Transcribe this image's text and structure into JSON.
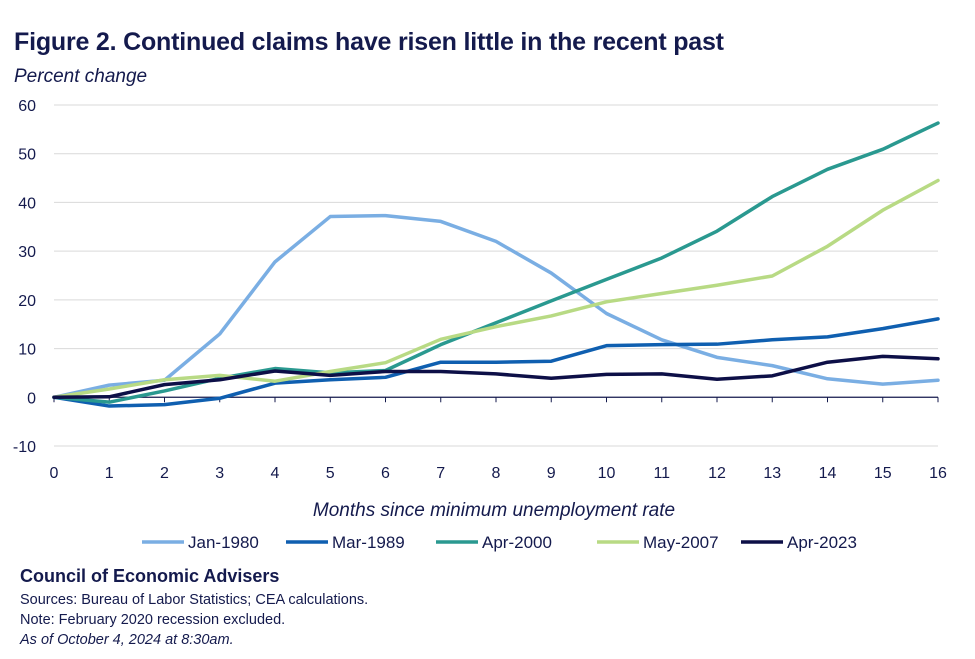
{
  "chart_data": {
    "type": "line",
    "title": "Figure 2. Continued claims have risen little in the recent past",
    "ylabel": "Percent change",
    "xlabel": "Months since minimum unemployment rate",
    "xlim": [
      0,
      16
    ],
    "ylim": [
      -10,
      60
    ],
    "yticks": [
      -10,
      0,
      10,
      20,
      30,
      40,
      50,
      60
    ],
    "xticks": [
      0,
      1,
      2,
      3,
      4,
      5,
      6,
      7,
      8,
      9,
      10,
      11,
      12,
      13,
      14,
      15,
      16
    ],
    "grid": true,
    "legend_position": "bottom",
    "x": [
      0,
      1,
      2,
      3,
      4,
      5,
      6,
      7,
      8,
      9,
      10,
      11,
      12,
      13,
      14,
      15,
      16
    ],
    "series": [
      {
        "name": "Jan-1980",
        "color": "#7aaee3",
        "values": [
          0,
          2.5,
          3.5,
          13,
          27.8,
          37.1,
          37.3,
          36.1,
          32,
          25.5,
          17.2,
          11.8,
          8.2,
          6.5,
          3.8,
          2.7,
          3.5
        ]
      },
      {
        "name": "Mar-1989",
        "color": "#0f5fb0",
        "values": [
          0,
          -1.8,
          -1.5,
          -0.2,
          2.9,
          3.6,
          4.1,
          7.2,
          7.2,
          7.4,
          10.6,
          10.8,
          10.9,
          11.8,
          12.4,
          14.1,
          16.1
        ]
      },
      {
        "name": "Apr-2000",
        "color": "#2a9990",
        "values": [
          0,
          -1,
          1.3,
          3.9,
          5.9,
          5,
          5.5,
          10.8,
          15.3,
          19.8,
          24.2,
          28.6,
          34.1,
          41.2,
          46.8,
          50.9,
          56.3
        ]
      },
      {
        "name": "May-2007",
        "color": "#b8da84",
        "values": [
          0,
          1.7,
          3.6,
          4.5,
          3.3,
          5.3,
          7.1,
          11.9,
          14.5,
          16.7,
          19.6,
          21.3,
          23,
          24.9,
          31,
          38.4,
          44.5
        ]
      },
      {
        "name": "Apr-2023",
        "color": "#0d0f47",
        "values": [
          0,
          0.1,
          2.6,
          3.6,
          5.4,
          4.5,
          5.3,
          5.3,
          4.8,
          3.9,
          4.7,
          4.8,
          3.7,
          4.4,
          7.2,
          8.4,
          7.9
        ]
      }
    ]
  },
  "footer": {
    "org": "Council of Economic Advisers",
    "sources": "Sources: Bureau of Labor Statistics; CEA calculations.",
    "note": "Note: February 2020 recession excluded.",
    "asof": "As of October 4, 2024 at 8:30am."
  }
}
